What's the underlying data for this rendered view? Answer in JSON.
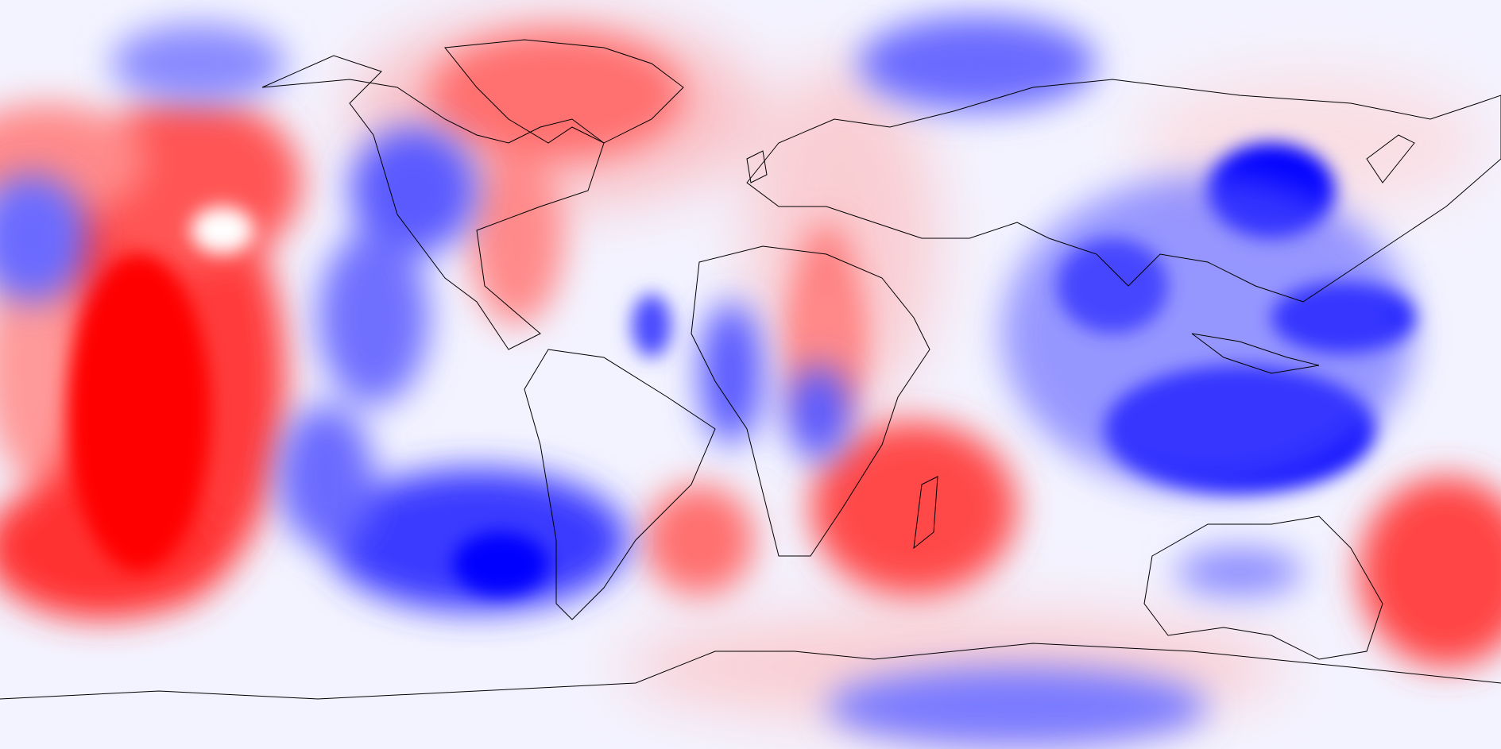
{
  "map": {
    "projection": "equirectangular",
    "field": "anomaly",
    "colormap": {
      "positive": "#ff0000",
      "negative": "#0000ff",
      "neutral": "#ffffff"
    },
    "coastline_color": "#000000",
    "features": [
      {
        "id": "pacific-positive",
        "sign": "positive",
        "strength": 1.0
      },
      {
        "id": "siberia-negative",
        "sign": "negative",
        "strength": 0.5
      },
      {
        "id": "greenland-positive",
        "sign": "positive",
        "strength": 0.5
      },
      {
        "id": "north-america-negative",
        "sign": "negative",
        "strength": 0.6
      },
      {
        "id": "south-pacific-negative",
        "sign": "negative",
        "strength": 0.9
      },
      {
        "id": "east-asia-negative",
        "sign": "negative",
        "strength": 1.0
      },
      {
        "id": "indian-ocean-negative",
        "sign": "negative",
        "strength": 1.0
      },
      {
        "id": "south-africa-positive",
        "sign": "positive",
        "strength": 0.7
      },
      {
        "id": "tasman-positive",
        "sign": "positive",
        "strength": 0.8
      },
      {
        "id": "antarctic-negative",
        "sign": "negative",
        "strength": 0.5
      }
    ]
  }
}
